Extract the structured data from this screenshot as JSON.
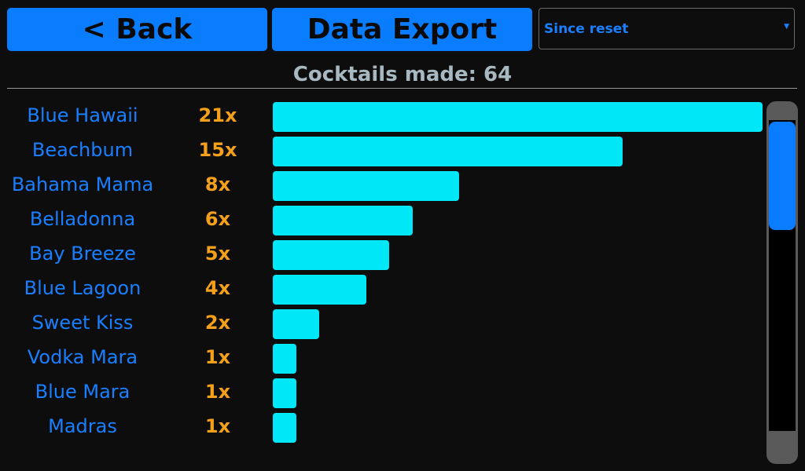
{
  "header": {
    "back_button": "< Back",
    "export_button": "Data Export",
    "period_dropdown": "Since reset"
  },
  "chart_data": {
    "type": "bar",
    "orientation": "horizontal",
    "title": "Cocktails made: 64",
    "categories": [
      "Blue Hawaii",
      "Beachbum",
      "Bahama Mama",
      "Belladonna",
      "Bay Breeze",
      "Blue Lagoon",
      "Sweet Kiss",
      "Vodka Mara",
      "Blue Mara",
      "Madras"
    ],
    "values": [
      21,
      15,
      8,
      6,
      5,
      4,
      2,
      1,
      1,
      1
    ],
    "value_labels": [
      "21x",
      "15x",
      "8x",
      "6x",
      "5x",
      "4x",
      "2x",
      "1x",
      "1x",
      "1x"
    ],
    "color": "#00e8f8"
  }
}
